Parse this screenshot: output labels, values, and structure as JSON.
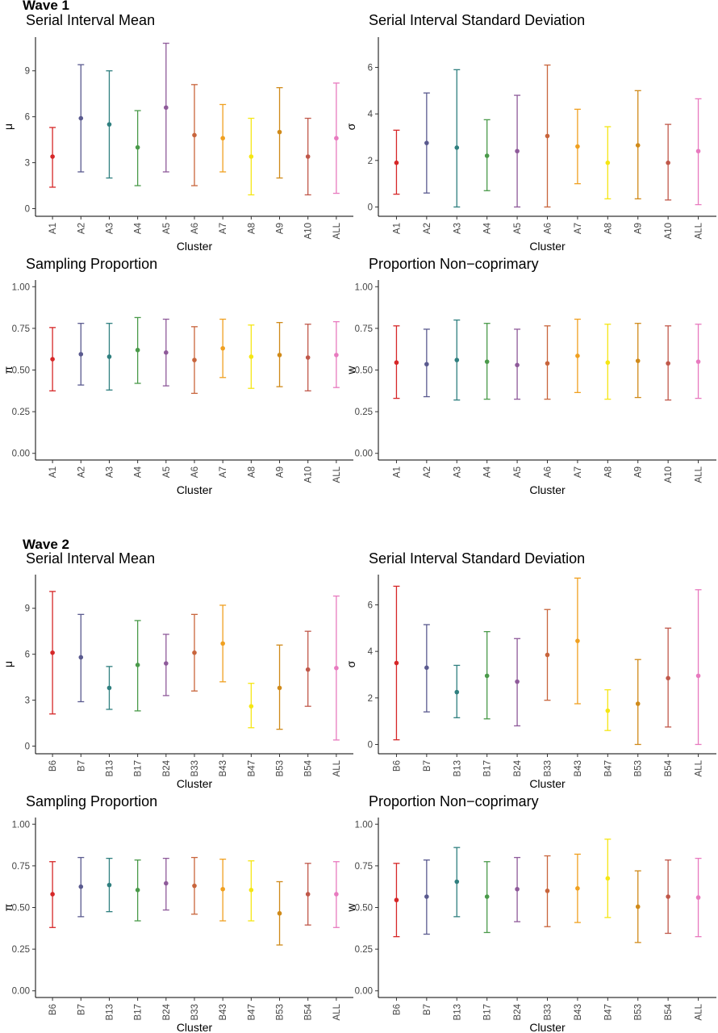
{
  "colors": [
    "#d62728",
    "#5a5a8f",
    "#2f7f7f",
    "#4a9a4a",
    "#8e5a9a",
    "#c8653c",
    "#f0a020",
    "#f5e614",
    "#d08a1a",
    "#c0584a",
    "#e87abf"
  ],
  "waves": [
    {
      "label": "Wave 1",
      "categories": [
        "A1",
        "A2",
        "A3",
        "A4",
        "A5",
        "A6",
        "A7",
        "A8",
        "A9",
        "A10",
        "ALL"
      ],
      "panels": [
        {
          "title": "Serial Interval Mean",
          "ylabel": "μ",
          "xlabel": "Cluster",
          "ylim": [
            -0.5,
            11.2
          ],
          "yticks": [
            0,
            3,
            6,
            9
          ],
          "mid": [
            3.4,
            5.9,
            5.5,
            4.0,
            6.6,
            4.8,
            4.6,
            3.4,
            5.0,
            3.4,
            4.6
          ],
          "low": [
            1.4,
            2.4,
            2.0,
            1.5,
            2.4,
            1.5,
            2.4,
            0.9,
            2.0,
            0.9,
            1.0
          ],
          "high": [
            5.3,
            9.4,
            9.0,
            6.4,
            10.8,
            8.1,
            6.8,
            5.9,
            7.9,
            5.9,
            8.2
          ]
        },
        {
          "title": "Serial Interval Standard Deviation",
          "ylabel": "σ",
          "xlabel": "Cluster",
          "ylim": [
            -0.4,
            7.3
          ],
          "yticks": [
            0,
            2,
            4,
            6
          ],
          "mid": [
            1.9,
            2.75,
            2.55,
            2.2,
            2.4,
            3.05,
            2.6,
            1.9,
            2.65,
            1.9,
            2.4
          ],
          "low": [
            0.55,
            0.6,
            0.0,
            0.7,
            0.0,
            0.0,
            1.0,
            0.35,
            0.35,
            0.3,
            0.1
          ],
          "high": [
            3.3,
            4.9,
            5.9,
            3.75,
            4.8,
            6.1,
            4.2,
            3.45,
            5.0,
            3.55,
            4.65
          ]
        },
        {
          "title": "Sampling Proportion",
          "ylabel": "π",
          "xlabel": "Cluster",
          "ylim": [
            -0.04,
            1.04
          ],
          "yticks": [
            "0.00",
            "0.25",
            "0.50",
            "0.75",
            "1.00"
          ],
          "mid": [
            0.565,
            0.595,
            0.58,
            0.62,
            0.605,
            0.56,
            0.63,
            0.58,
            0.59,
            0.575,
            0.59
          ],
          "low": [
            0.375,
            0.41,
            0.38,
            0.42,
            0.405,
            0.36,
            0.455,
            0.39,
            0.4,
            0.375,
            0.395
          ],
          "high": [
            0.755,
            0.78,
            0.78,
            0.815,
            0.805,
            0.76,
            0.805,
            0.77,
            0.785,
            0.775,
            0.79
          ]
        },
        {
          "title": "Proportion Non−coprimary",
          "ylabel": "w",
          "xlabel": "Cluster",
          "ylim": [
            -0.04,
            1.04
          ],
          "yticks": [
            "0.00",
            "0.25",
            "0.50",
            "0.75",
            "1.00"
          ],
          "mid": [
            0.545,
            0.535,
            0.56,
            0.55,
            0.53,
            0.54,
            0.585,
            0.545,
            0.555,
            0.54,
            0.55
          ],
          "low": [
            0.33,
            0.34,
            0.32,
            0.325,
            0.325,
            0.325,
            0.365,
            0.325,
            0.335,
            0.32,
            0.33
          ],
          "high": [
            0.765,
            0.745,
            0.8,
            0.78,
            0.745,
            0.765,
            0.805,
            0.775,
            0.78,
            0.765,
            0.775
          ]
        }
      ]
    },
    {
      "label": "Wave 2",
      "categories": [
        "B6",
        "B7",
        "B13",
        "B17",
        "B24",
        "B33",
        "B43",
        "B47",
        "B53",
        "B54",
        "ALL"
      ],
      "panels": [
        {
          "title": "Serial Interval Mean",
          "ylabel": "μ",
          "xlabel": "Cluster",
          "ylim": [
            -0.5,
            11.2
          ],
          "yticks": [
            0,
            3,
            6,
            9
          ],
          "mid": [
            6.1,
            5.8,
            3.8,
            5.3,
            5.4,
            6.1,
            6.7,
            2.6,
            3.8,
            5.0,
            5.1
          ],
          "low": [
            2.1,
            2.9,
            2.4,
            2.3,
            3.3,
            3.6,
            4.2,
            1.2,
            1.1,
            2.6,
            0.4
          ],
          "high": [
            10.1,
            8.6,
            5.2,
            8.2,
            7.3,
            8.6,
            9.2,
            4.1,
            6.6,
            7.5,
            9.8
          ]
        },
        {
          "title": "Serial Interval Standard Deviation",
          "ylabel": "σ",
          "xlabel": "Cluster",
          "ylim": [
            -0.4,
            7.3
          ],
          "yticks": [
            0,
            2,
            4,
            6
          ],
          "mid": [
            3.5,
            3.3,
            2.25,
            2.95,
            2.7,
            3.85,
            4.45,
            1.45,
            1.75,
            2.85,
            2.95
          ],
          "low": [
            0.2,
            1.4,
            1.15,
            1.1,
            0.8,
            1.9,
            1.75,
            0.6,
            0.0,
            0.75,
            0.0
          ],
          "high": [
            6.8,
            5.15,
            3.4,
            4.85,
            4.55,
            5.8,
            7.15,
            2.35,
            3.65,
            5.0,
            6.65
          ]
        },
        {
          "title": "Sampling Proportion",
          "ylabel": "π",
          "xlabel": "Cluster",
          "ylim": [
            -0.04,
            1.04
          ],
          "yticks": [
            "0.00",
            "0.25",
            "0.50",
            "0.75",
            "1.00"
          ],
          "mid": [
            0.58,
            0.625,
            0.635,
            0.605,
            0.645,
            0.63,
            0.61,
            0.605,
            0.465,
            0.58,
            0.58
          ],
          "low": [
            0.38,
            0.445,
            0.475,
            0.42,
            0.485,
            0.46,
            0.42,
            0.42,
            0.275,
            0.395,
            0.38
          ],
          "high": [
            0.775,
            0.8,
            0.795,
            0.785,
            0.795,
            0.8,
            0.79,
            0.78,
            0.655,
            0.765,
            0.775
          ]
        },
        {
          "title": "Proportion Non−coprimary",
          "ylabel": "w",
          "xlabel": "Cluster",
          "ylim": [
            -0.04,
            1.04
          ],
          "yticks": [
            "0.00",
            "0.25",
            "0.50",
            "0.75",
            "1.00"
          ],
          "mid": [
            0.545,
            0.565,
            0.655,
            0.565,
            0.61,
            0.6,
            0.615,
            0.675,
            0.505,
            0.565,
            0.56
          ],
          "low": [
            0.325,
            0.34,
            0.445,
            0.35,
            0.415,
            0.385,
            0.41,
            0.44,
            0.29,
            0.345,
            0.325
          ],
          "high": [
            0.765,
            0.785,
            0.86,
            0.775,
            0.8,
            0.81,
            0.82,
            0.91,
            0.72,
            0.785,
            0.795
          ]
        }
      ]
    }
  ]
}
